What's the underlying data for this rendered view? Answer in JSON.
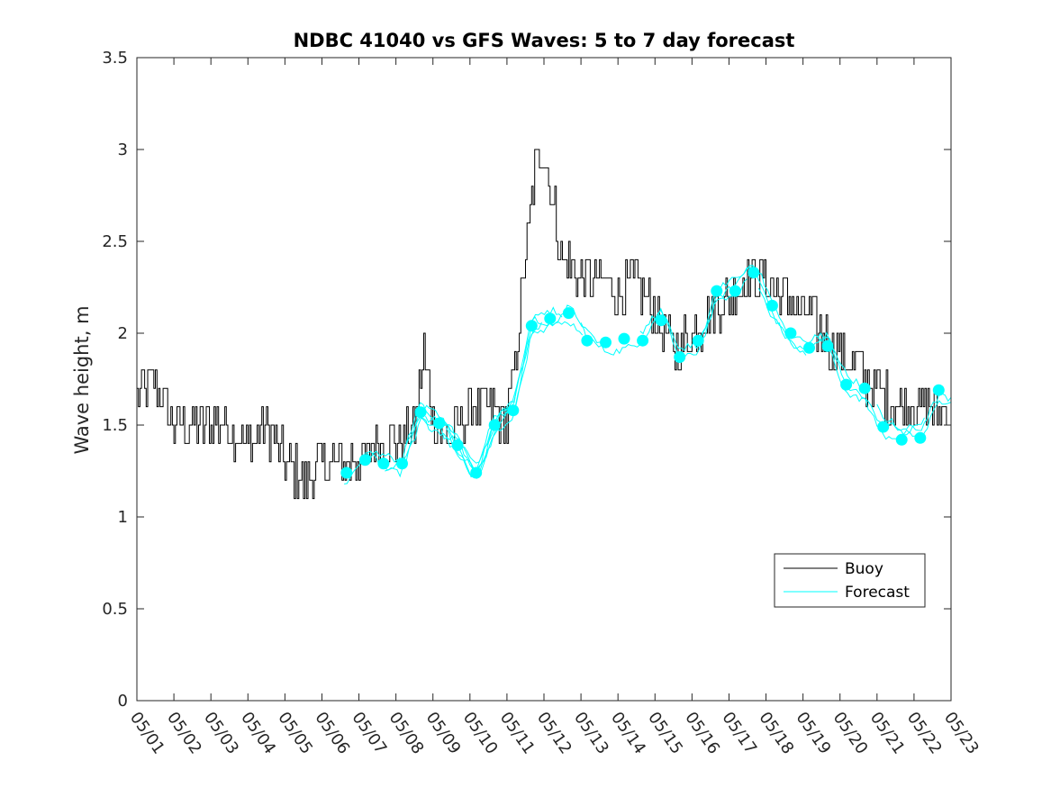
{
  "chart_data": {
    "type": "line",
    "title": "NDBC 41040 vs GFS Waves: 5 to 7 day forecast",
    "xlabel": "",
    "ylabel": "Wave height, m",
    "xlim": [
      "05/01",
      "05/23"
    ],
    "ylim": [
      0,
      3.5
    ],
    "yticks": [
      "0",
      "0.5",
      "1",
      "1.5",
      "2",
      "2.5",
      "3",
      "3.5"
    ],
    "xticks": [
      "05/01",
      "05/02",
      "05/03",
      "05/04",
      "05/05",
      "05/06",
      "05/07",
      "05/08",
      "05/09",
      "05/10",
      "05/11",
      "05/12",
      "05/13",
      "05/14",
      "05/15",
      "05/16",
      "05/17",
      "05/18",
      "05/19",
      "05/20",
      "05/21",
      "05/22",
      "05/23"
    ],
    "grid": false,
    "legend": "bottom-right",
    "colors": {
      "buoy": "#000000",
      "forecast": "#00ffff"
    },
    "series": [
      {
        "name": "Buoy",
        "x": [
          "05/01 00:00",
          "05/01 12:00",
          "05/02 00:00",
          "05/02 12:00",
          "05/03 00:00",
          "05/03 12:00",
          "05/04 00:00",
          "05/04 12:00",
          "05/05 00:00",
          "05/05 12:00",
          "05/06 00:00",
          "05/06 12:00",
          "05/07 00:00",
          "05/07 12:00",
          "05/08 00:00",
          "05/08 12:00",
          "05/08 18:00",
          "05/09 00:00",
          "05/09 12:00",
          "05/10 00:00",
          "05/10 12:00",
          "05/11 00:00",
          "05/11 06:00",
          "05/11 12:00",
          "05/11 18:00",
          "05/12 00:00",
          "05/12 06:00",
          "05/12 12:00",
          "05/13 00:00",
          "05/13 12:00",
          "05/14 00:00",
          "05/14 12:00",
          "05/15 00:00",
          "05/15 12:00",
          "05/16 00:00",
          "05/16 12:00",
          "05/17 00:00",
          "05/17 12:00",
          "05/18 00:00",
          "05/18 12:00",
          "05/19 00:00",
          "05/19 12:00",
          "05/20 00:00",
          "05/20 12:00",
          "05/21 00:00",
          "05/21 12:00",
          "05/22 00:00",
          "05/22 12:00"
        ],
        "y": [
          1.7,
          1.7,
          1.5,
          1.5,
          1.5,
          1.5,
          1.4,
          1.5,
          1.3,
          1.2,
          1.3,
          1.3,
          1.3,
          1.4,
          1.4,
          1.5,
          1.9,
          1.5,
          1.4,
          1.6,
          1.6,
          1.5,
          1.9,
          2.4,
          2.9,
          3.0,
          2.7,
          2.4,
          2.3,
          2.3,
          2.2,
          2.3,
          2.1,
          1.9,
          2.0,
          2.1,
          2.2,
          2.3,
          2.3,
          2.2,
          2.1,
          2.0,
          1.9,
          1.8,
          1.7,
          1.6,
          1.6,
          1.6
        ]
      },
      {
        "name": "Forecast",
        "x": [
          "05/06 16:00",
          "05/07 04:00",
          "05/07 16:00",
          "05/08 04:00",
          "05/08 16:00",
          "05/09 04:00",
          "05/09 16:00",
          "05/10 04:00",
          "05/10 16:00",
          "05/11 04:00",
          "05/11 16:00",
          "05/12 04:00",
          "05/12 16:00",
          "05/13 04:00",
          "05/13 16:00",
          "05/14 04:00",
          "05/14 16:00",
          "05/15 04:00",
          "05/15 16:00",
          "05/16 04:00",
          "05/16 16:00",
          "05/17 04:00",
          "05/17 16:00",
          "05/18 04:00",
          "05/18 16:00",
          "05/19 04:00",
          "05/19 16:00",
          "05/20 04:00",
          "05/20 16:00",
          "05/21 04:00",
          "05/21 16:00",
          "05/22 04:00",
          "05/22 16:00"
        ],
        "y": [
          1.24,
          1.31,
          1.29,
          1.29,
          1.57,
          1.51,
          1.39,
          1.24,
          1.5,
          1.58,
          2.04,
          2.08,
          2.11,
          1.96,
          1.95,
          1.97,
          1.96,
          2.07,
          1.87,
          1.96,
          2.23,
          2.23,
          2.33,
          2.15,
          2.0,
          1.92,
          1.93,
          1.72,
          1.7,
          1.49,
          1.42,
          1.43,
          1.69
        ]
      }
    ]
  },
  "legend": {
    "buoy_label": "Buoy",
    "forecast_label": "Forecast"
  }
}
